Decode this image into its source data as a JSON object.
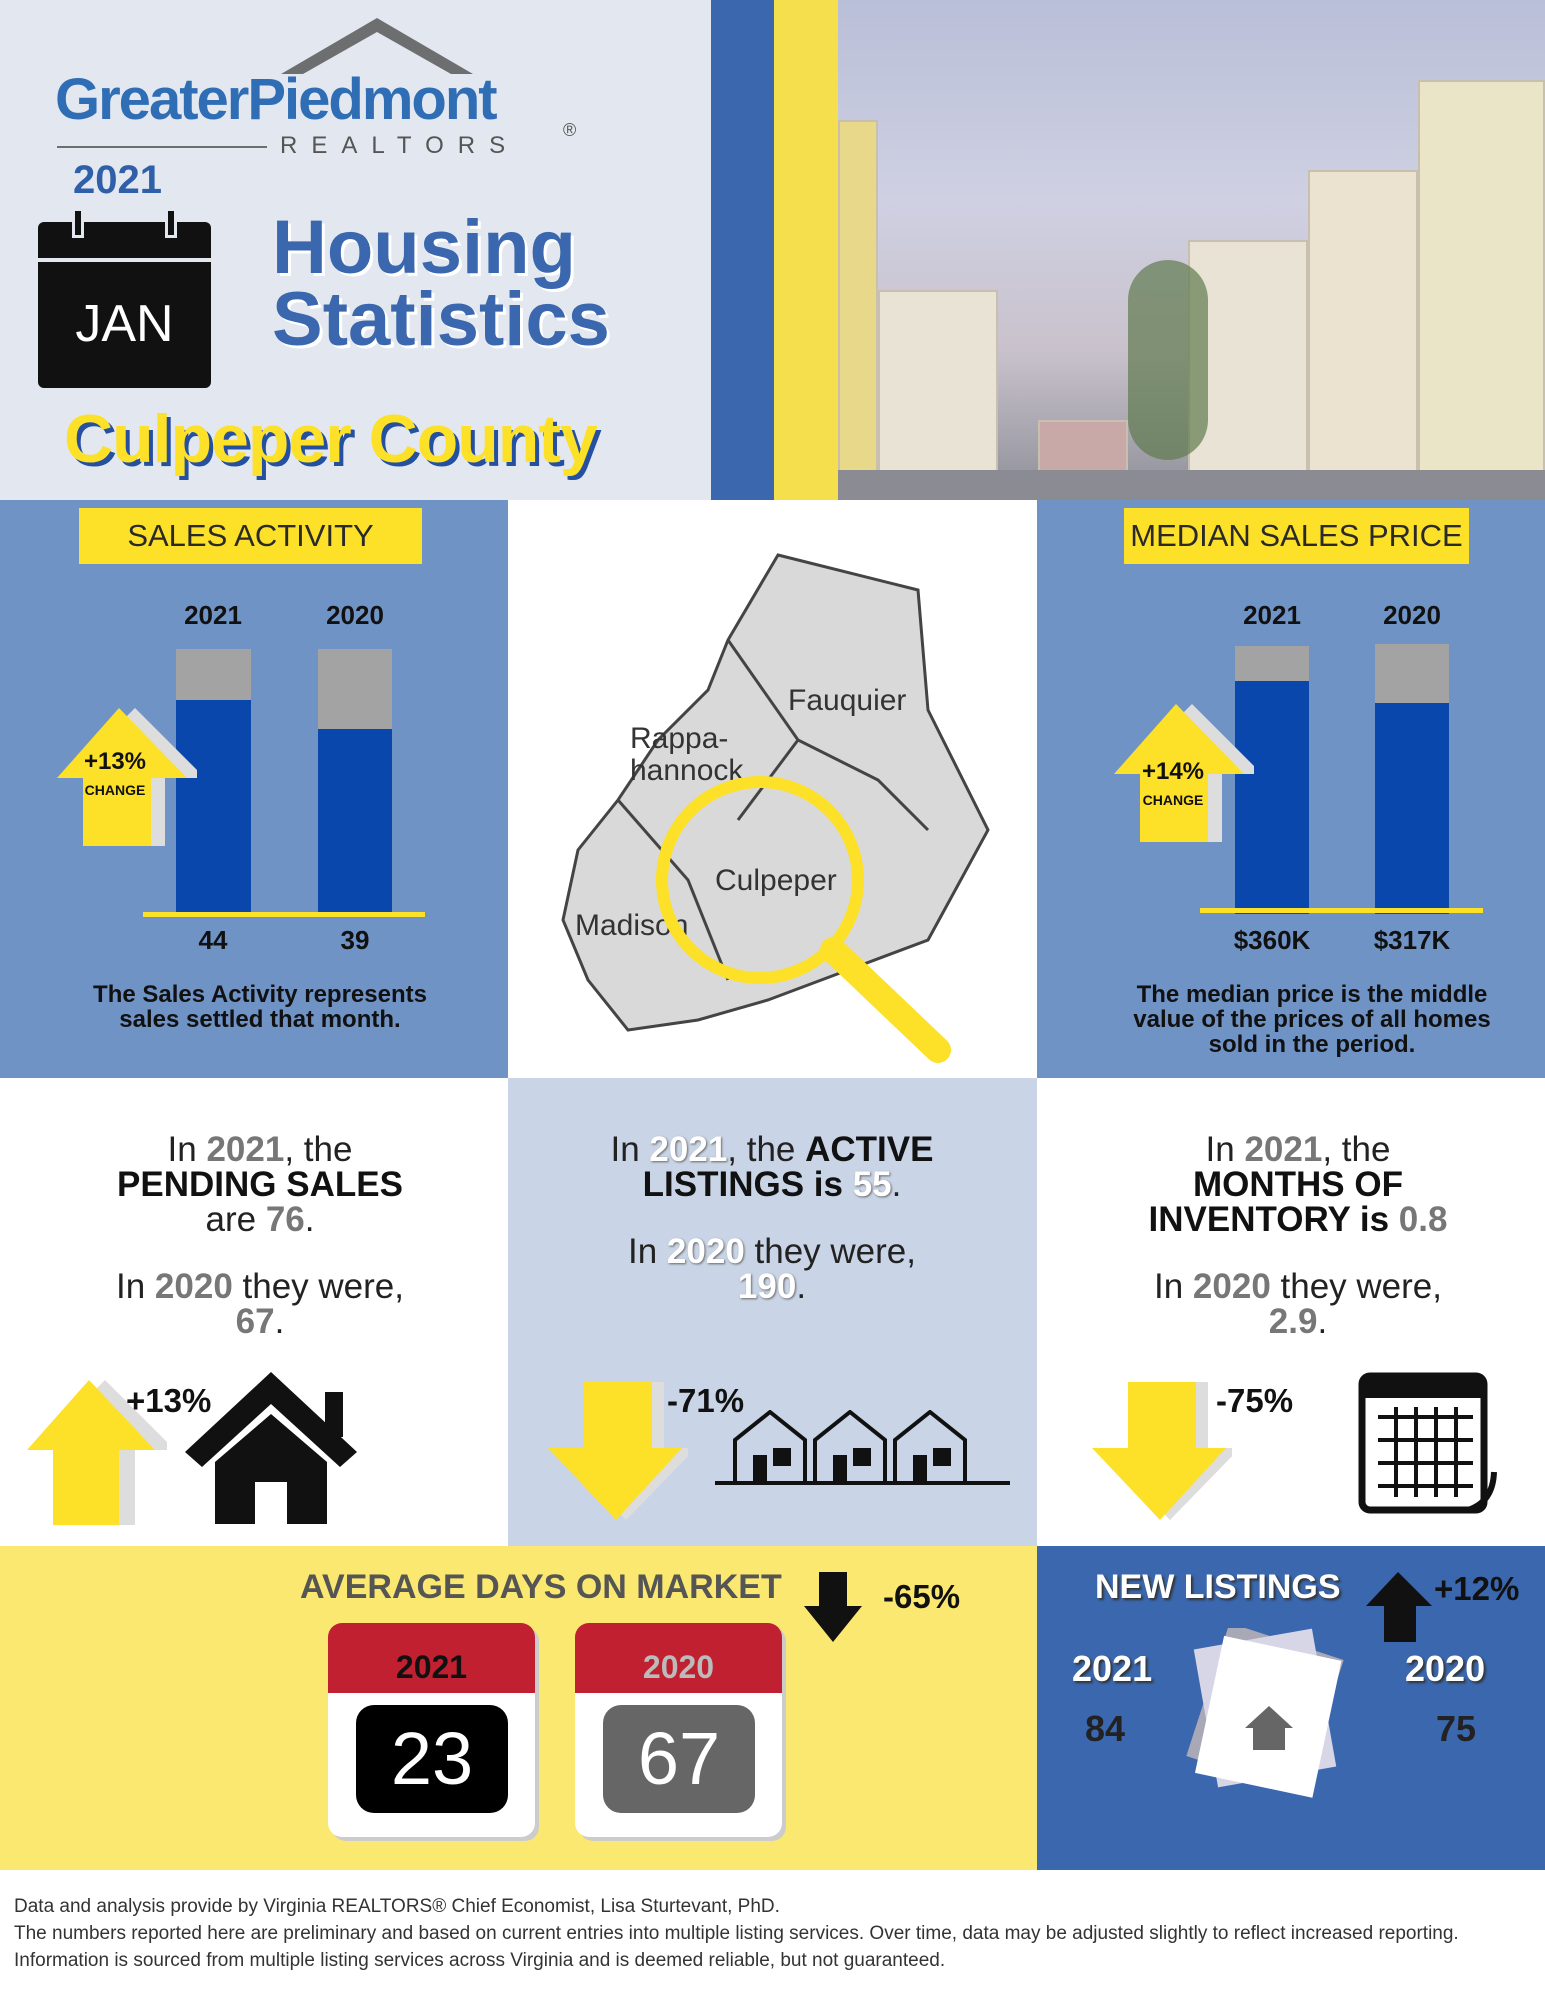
{
  "header": {
    "logo": {
      "brand": "GreaterPiedmont",
      "sub": "REALTORS",
      "reg": "®"
    },
    "year": "2021",
    "month": "JAN",
    "title_line1": "Housing",
    "title_line2": "Statistics",
    "county": "Culpeper County"
  },
  "sales_activity": {
    "title": "SALES ACTIVITY",
    "years": [
      "2021",
      "2020"
    ],
    "values_label": [
      "44",
      "39"
    ],
    "change": "+13%",
    "change_label": "CHANGE",
    "caption": "The Sales Activity represents sales settled that month."
  },
  "median_price": {
    "title": "MEDIAN SALES PRICE",
    "years": [
      "2021",
      "2020"
    ],
    "values_label": [
      "$360K",
      "$317K"
    ],
    "change": "+14%",
    "change_label": "CHANGE",
    "caption": "The median price is the middle value of the prices of all homes sold in the period."
  },
  "map": {
    "labels": [
      "Fauquier",
      "Rappa-",
      "hannock",
      "Culpeper",
      "Madison"
    ]
  },
  "pending": {
    "in": "In ",
    "y1": "2021",
    "the": ", the",
    "metric": "PENDING SALES",
    "are": "are ",
    "v1": "76",
    "in2": "In ",
    "y2": "2020",
    "were": " they were,",
    "v2": "67",
    "change": "+13%"
  },
  "active": {
    "in": "In ",
    "y1": "2021",
    "the": ", the ",
    "metric1": "ACTIVE",
    "metric2": "LISTINGS is ",
    "v1": "55",
    "in2": "In ",
    "y2": "2020",
    "were": " they were,",
    "v2": "190",
    "change": "-71%"
  },
  "inventory": {
    "in": "In ",
    "y1": "2021",
    "the": ", the",
    "metric1": "MONTHS OF",
    "metric2": "INVENTORY is ",
    "v1": "0.8",
    "in2": "In ",
    "y2": "2020",
    "were": " they were,",
    "v2": "2.9",
    "change": "-75%"
  },
  "days_on_market": {
    "title": "AVERAGE DAYS ON MARKET",
    "change": "-65%",
    "cal": [
      {
        "year": "2021",
        "value": "23"
      },
      {
        "year": "2020",
        "value": "67"
      }
    ]
  },
  "new_listings": {
    "title": "NEW LISTINGS",
    "change": "+12%",
    "y1": "2021",
    "v1": "84",
    "y2": "2020",
    "v2": "75"
  },
  "footer": {
    "line1": "Data and analysis provide by Virginia REALTORS® Chief Economist, Lisa Sturtevant, PhD.",
    "line2": "The numbers reported here are preliminary and based on current entries into multiple listing services. Over time, data may be adjusted slightly to reflect increased reporting. Information is sourced from multiple listing services across Virginia and is deemed reliable, but not guaranteed."
  },
  "chart_data": [
    {
      "type": "bar",
      "title": "SALES ACTIVITY",
      "categories": [
        "2021",
        "2020"
      ],
      "values": [
        44,
        39
      ]
    },
    {
      "type": "bar",
      "title": "MEDIAN SALES PRICE",
      "categories": [
        "2021",
        "2020"
      ],
      "values": [
        360000,
        317000
      ]
    }
  ],
  "colors": {
    "blue": "#3a67ad",
    "yellow": "#fde028",
    "panel": "#7093c6"
  }
}
